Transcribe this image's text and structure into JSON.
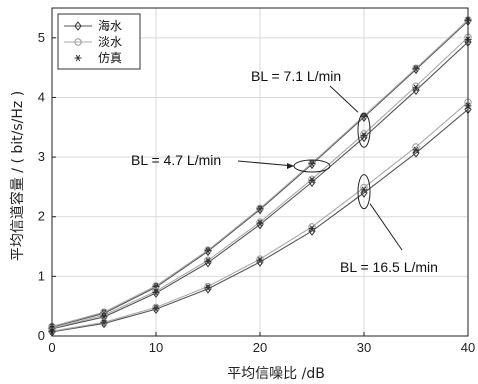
{
  "chart_data": {
    "type": "line",
    "title": "",
    "xlabel": "平均信噪比 /dB",
    "ylabel": "平均信道容量 / ( bit/s/Hz )",
    "xlim": [
      0,
      40
    ],
    "ylim": [
      0,
      5.5
    ],
    "xticks": [
      0,
      10,
      20,
      30,
      40
    ],
    "yticks": [
      0,
      1,
      2,
      3,
      4,
      5
    ],
    "grid": true,
    "legend_position": "top-left",
    "legend": [
      {
        "label": "海水",
        "marker": "diamond"
      },
      {
        "label": "淡水",
        "marker": "circle"
      },
      {
        "label": "仿真",
        "marker": "asterisk"
      }
    ],
    "x": [
      0,
      5,
      10,
      15,
      20,
      25,
      30,
      35,
      40
    ],
    "series": [
      {
        "name": "海水",
        "group": "BL = 4.7 L/min",
        "values": [
          0.15,
          0.38,
          0.82,
          1.42,
          2.12,
          2.88,
          3.67,
          4.47,
          5.28
        ]
      },
      {
        "name": "淡水",
        "group": "BL = 4.7 L/min",
        "values": [
          0.16,
          0.4,
          0.84,
          1.44,
          2.14,
          2.9,
          3.69,
          4.49,
          5.3
        ]
      },
      {
        "name": "仿真",
        "group": "BL = 4.7 L/min",
        "values": [
          0.15,
          0.39,
          0.83,
          1.43,
          2.13,
          2.89,
          3.68,
          4.48,
          5.29
        ]
      },
      {
        "name": "海水",
        "group": "BL = 7.1 L/min",
        "values": [
          0.12,
          0.32,
          0.72,
          1.23,
          1.87,
          2.58,
          3.33,
          4.12,
          4.93
        ]
      },
      {
        "name": "淡水",
        "group": "BL = 7.1 L/min",
        "values": [
          0.13,
          0.35,
          0.75,
          1.27,
          1.91,
          2.63,
          3.39,
          4.19,
          5.01
        ]
      },
      {
        "name": "仿真",
        "group": "BL = 7.1 L/min",
        "values": [
          0.12,
          0.33,
          0.73,
          1.25,
          1.89,
          2.61,
          3.36,
          4.16,
          4.97
        ]
      },
      {
        "name": "海水",
        "group": "BL = 16.5 L/min",
        "values": [
          0.07,
          0.21,
          0.45,
          0.79,
          1.24,
          1.76,
          2.4,
          3.07,
          3.8
        ]
      },
      {
        "name": "淡水",
        "group": "BL = 16.5 L/min",
        "values": [
          0.08,
          0.23,
          0.48,
          0.83,
          1.29,
          1.83,
          2.49,
          3.17,
          3.92
        ]
      },
      {
        "name": "仿真",
        "group": "BL = 16.5 L/min",
        "values": [
          0.07,
          0.22,
          0.46,
          0.81,
          1.27,
          1.8,
          2.45,
          3.12,
          3.86
        ]
      }
    ],
    "annotations": [
      {
        "text": "BL = 7.1 L/min",
        "ellipse_at": {
          "x": 30,
          "y": 3.45
        }
      },
      {
        "text": "BL = 4.7 L/min",
        "ellipse_at": {
          "x": 25,
          "y": 2.85
        }
      },
      {
        "text": "BL = 16.5 L/min",
        "ellipse_at": {
          "x": 30,
          "y": 2.42
        }
      }
    ],
    "colors": {
      "line_dark": "#555555",
      "line_light": "#aaaaaa",
      "grid": "#d9d9d9",
      "axis": "#222222"
    }
  }
}
